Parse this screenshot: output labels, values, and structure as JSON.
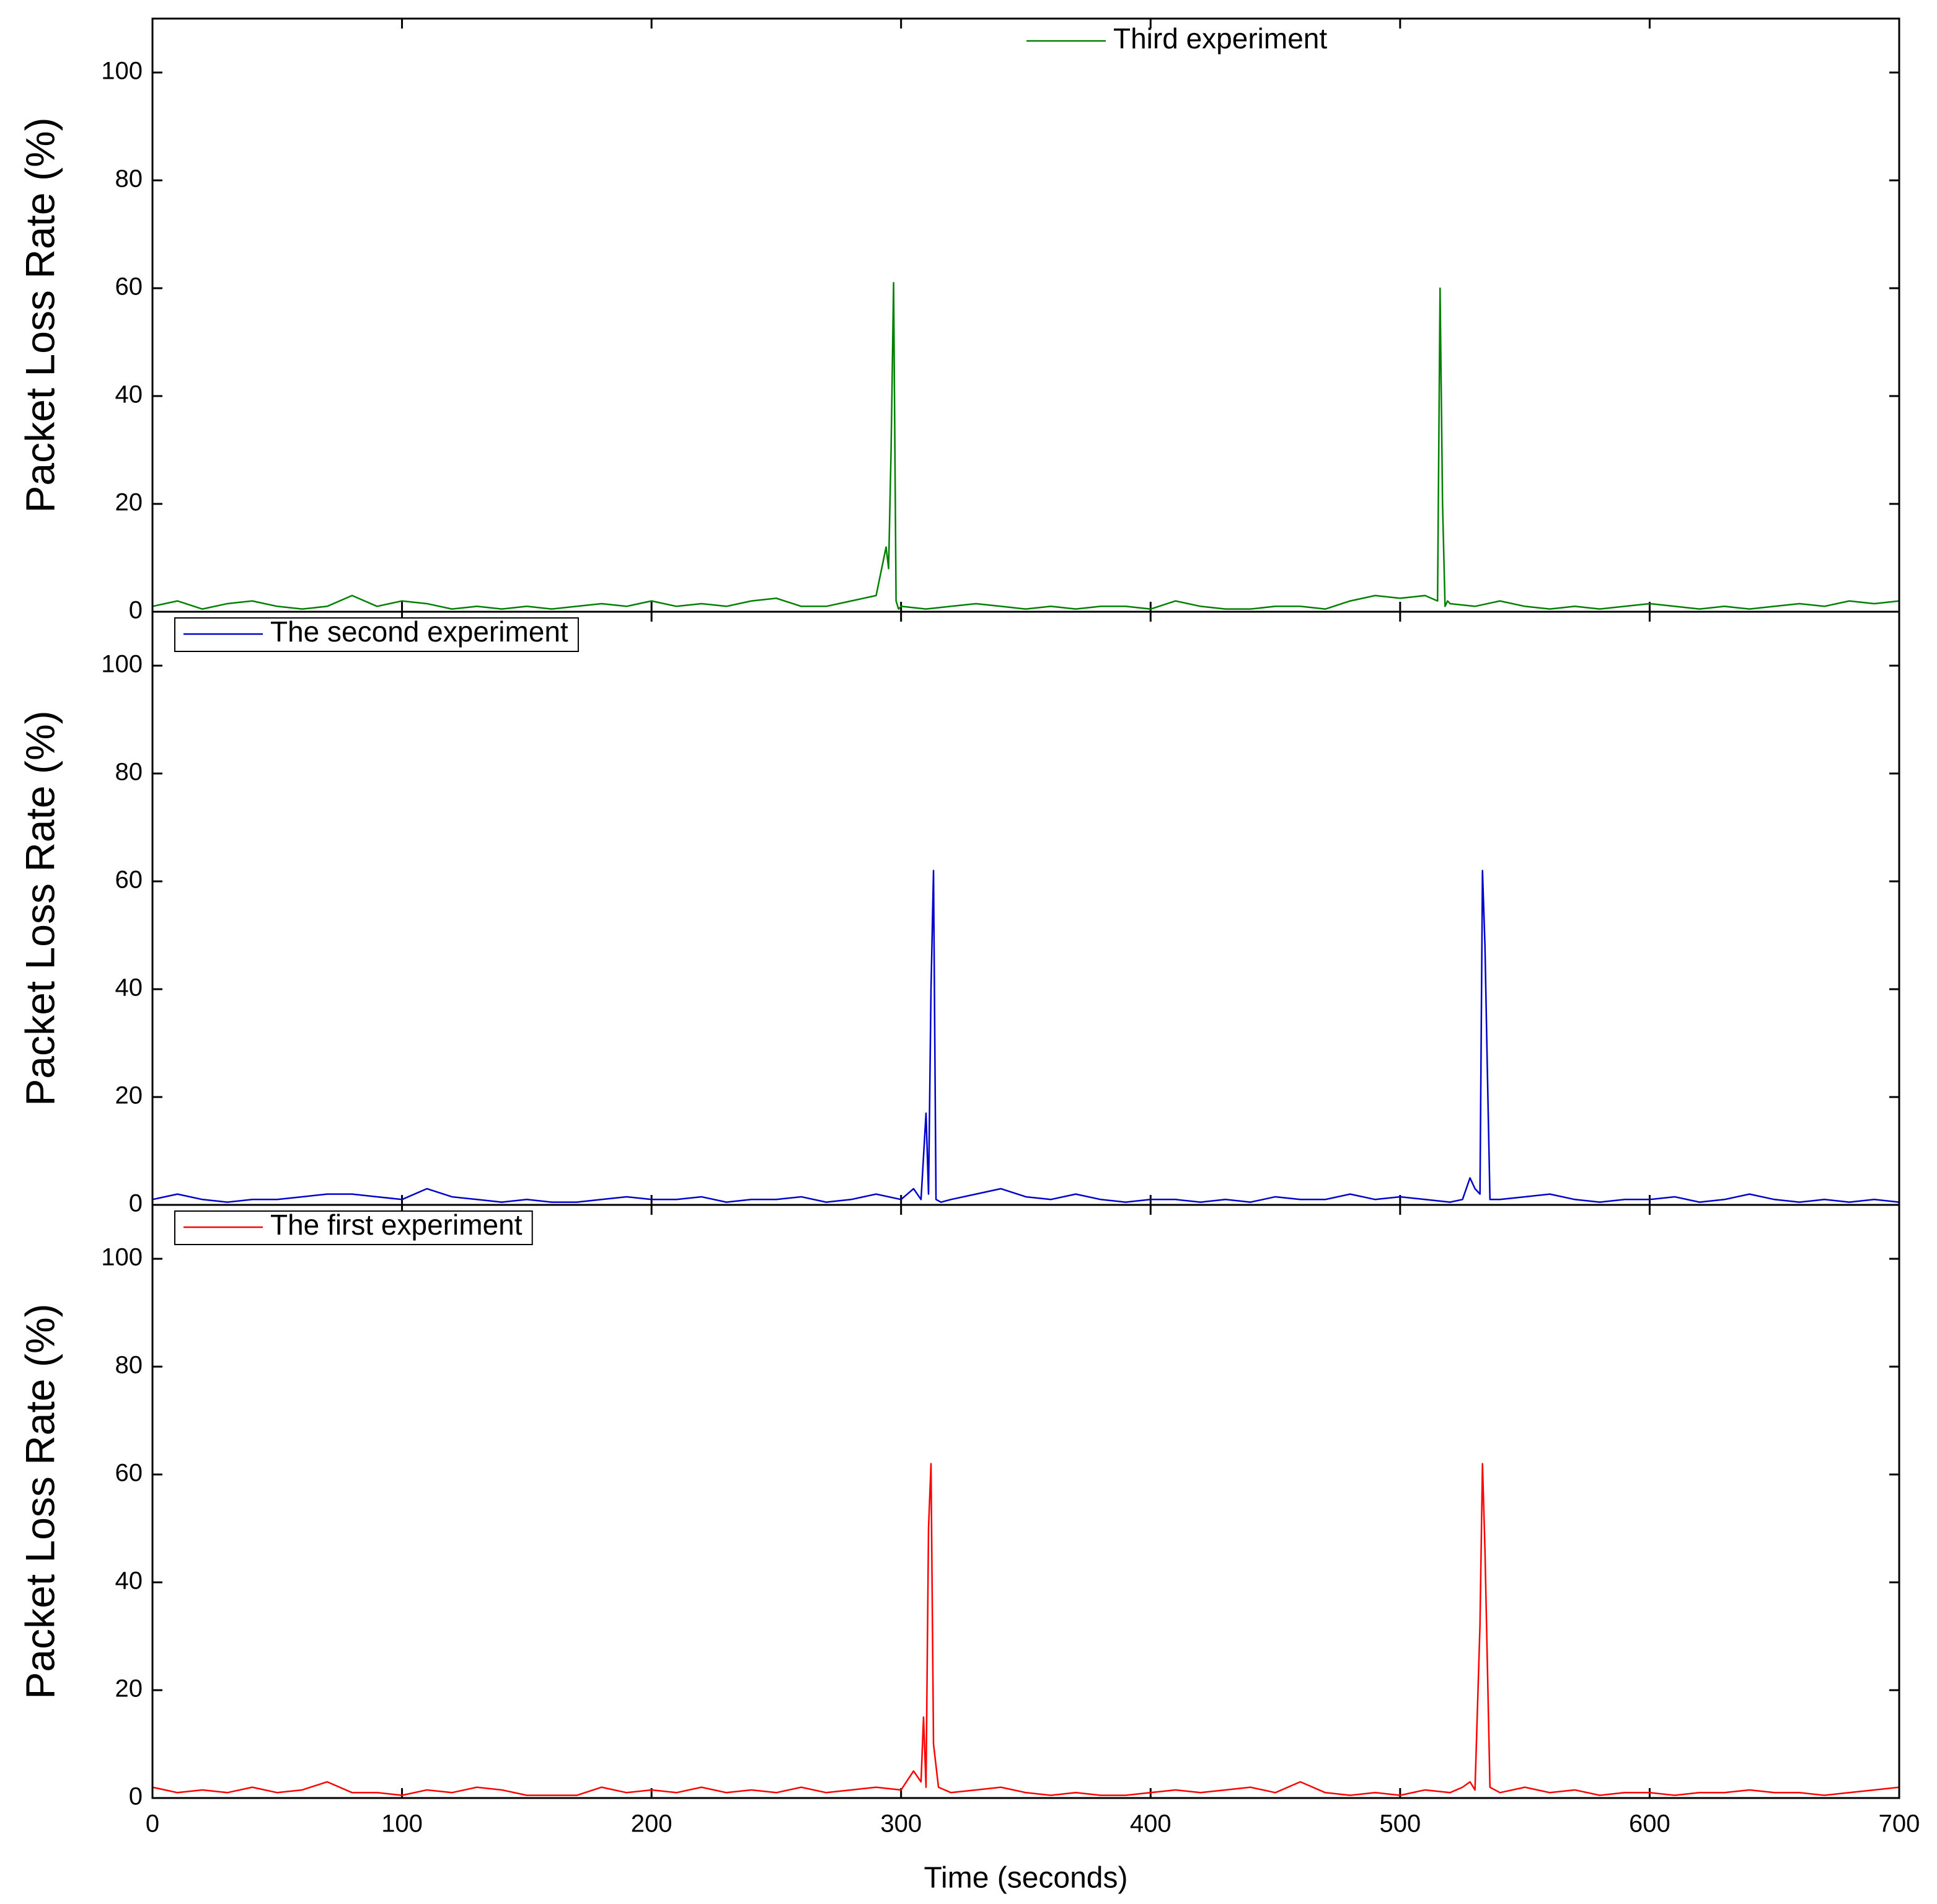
{
  "chart_data": [
    {
      "type": "line",
      "ylabel": "Packet Loss Rate (%)",
      "legend": "top-center",
      "legend_frame": false,
      "xlim": [
        0,
        700
      ],
      "xticks": [
        0,
        100,
        200,
        300,
        400,
        500,
        600,
        700
      ],
      "ylim": [
        0,
        110
      ],
      "yticks": [
        0,
        20,
        40,
        60,
        80,
        100
      ],
      "series": [
        {
          "name": "Third experiment",
          "color": "#008000",
          "x": [
            0,
            10,
            20,
            30,
            40,
            50,
            60,
            70,
            80,
            90,
            100,
            110,
            120,
            130,
            140,
            150,
            160,
            170,
            180,
            190,
            200,
            210,
            220,
            230,
            240,
            250,
            260,
            270,
            280,
            290,
            294,
            295,
            296,
            297,
            298,
            299,
            300,
            310,
            320,
            330,
            340,
            350,
            360,
            370,
            380,
            390,
            400,
            410,
            420,
            430,
            440,
            450,
            460,
            470,
            480,
            490,
            500,
            510,
            515,
            516,
            517,
            518,
            519,
            520,
            530,
            540,
            550,
            560,
            570,
            580,
            590,
            600,
            610,
            620,
            630,
            640,
            650,
            660,
            670,
            680,
            690,
            700
          ],
          "values": [
            1,
            2,
            0.5,
            1.5,
            2,
            1,
            0.5,
            1,
            3,
            1,
            2,
            1.5,
            0.5,
            1,
            0.5,
            1,
            0.5,
            1,
            1.5,
            1,
            2,
            1,
            1.5,
            1,
            2,
            2.5,
            1,
            1,
            2,
            3,
            12,
            8,
            30,
            61,
            2,
            0.5,
            1,
            0.5,
            1,
            1.5,
            1,
            0.5,
            1,
            0.5,
            1,
            1,
            0.5,
            2,
            1,
            0.5,
            0.5,
            1,
            1,
            0.5,
            2,
            3,
            2.5,
            3,
            2,
            60,
            20,
            1,
            2,
            1.5,
            1,
            2,
            1,
            0.5,
            1,
            0.5,
            1,
            1.5,
            1,
            0.5,
            1,
            0.5,
            1,
            1.5,
            1,
            2,
            1.5,
            2
          ]
        }
      ]
    },
    {
      "type": "line",
      "ylabel": "Packet Loss Rate (%)",
      "legend": "top-left",
      "legend_frame": true,
      "xlim": [
        0,
        700
      ],
      "xticks": [
        0,
        100,
        200,
        300,
        400,
        500,
        600,
        700
      ],
      "ylim": [
        0,
        110
      ],
      "yticks": [
        0,
        20,
        40,
        60,
        80,
        100
      ],
      "series": [
        {
          "name": "The second experiment",
          "color": "#0000cc",
          "x": [
            0,
            10,
            20,
            30,
            40,
            50,
            60,
            70,
            80,
            90,
            100,
            110,
            120,
            130,
            140,
            150,
            160,
            170,
            180,
            190,
            200,
            210,
            220,
            230,
            240,
            250,
            260,
            270,
            280,
            290,
            300,
            305,
            308,
            310,
            311,
            312,
            313,
            314,
            316,
            320,
            330,
            340,
            350,
            360,
            370,
            380,
            390,
            400,
            410,
            420,
            430,
            440,
            450,
            460,
            470,
            480,
            490,
            500,
            510,
            520,
            525,
            528,
            530,
            532,
            533,
            534,
            535,
            536,
            540,
            550,
            560,
            570,
            580,
            590,
            600,
            610,
            620,
            630,
            640,
            650,
            660,
            670,
            680,
            690,
            700
          ],
          "values": [
            1,
            2,
            1,
            0.5,
            1,
            1,
            1.5,
            2,
            2,
            1.5,
            1,
            3,
            1.5,
            1,
            0.5,
            1,
            0.5,
            0.5,
            1,
            1.5,
            1,
            1,
            1.5,
            0.5,
            1,
            1,
            1.5,
            0.5,
            1,
            2,
            1,
            3,
            1,
            17,
            2,
            40,
            62,
            1,
            0.5,
            1,
            2,
            3,
            1.5,
            1,
            2,
            1,
            0.5,
            1,
            1,
            0.5,
            1,
            0.5,
            1.5,
            1,
            1,
            2,
            1,
            1.5,
            1,
            0.5,
            1,
            5,
            3,
            2,
            62,
            48,
            24,
            1,
            1,
            1.5,
            2,
            1,
            0.5,
            1,
            1,
            1.5,
            0.5,
            1,
            2,
            1,
            0.5,
            1,
            0.5,
            1,
            0.5
          ]
        }
      ]
    },
    {
      "type": "line",
      "ylabel": "Packet Loss Rate (%)",
      "xlabel": "Time (seconds)",
      "legend": "top-left",
      "legend_frame": true,
      "xlim": [
        0,
        700
      ],
      "xticks": [
        0,
        100,
        200,
        300,
        400,
        500,
        600,
        700
      ],
      "ylim": [
        0,
        110
      ],
      "yticks": [
        0,
        20,
        40,
        60,
        80,
        100
      ],
      "series": [
        {
          "name": "The first experiment",
          "color": "#ff0000",
          "x": [
            0,
            10,
            20,
            30,
            40,
            50,
            60,
            70,
            80,
            90,
            100,
            110,
            120,
            130,
            140,
            150,
            160,
            170,
            180,
            190,
            200,
            210,
            220,
            230,
            240,
            250,
            260,
            270,
            280,
            290,
            300,
            305,
            308,
            309,
            310,
            311,
            312,
            313,
            315,
            320,
            330,
            340,
            350,
            360,
            370,
            380,
            390,
            400,
            410,
            420,
            430,
            440,
            450,
            460,
            470,
            480,
            490,
            500,
            510,
            520,
            525,
            528,
            530,
            532,
            533,
            534,
            536,
            540,
            550,
            560,
            570,
            580,
            590,
            600,
            610,
            620,
            630,
            640,
            650,
            660,
            670,
            680,
            690,
            700
          ],
          "values": [
            2,
            1,
            1.5,
            1,
            2,
            1,
            1.5,
            3,
            1,
            1,
            0.5,
            1.5,
            1,
            2,
            1.5,
            0.5,
            0.5,
            0.5,
            2,
            1,
            1.5,
            1,
            2,
            1,
            1.5,
            1,
            2,
            1,
            1.5,
            2,
            1.5,
            5,
            3,
            15,
            2,
            50,
            62,
            10,
            2,
            1,
            1.5,
            2,
            1,
            0.5,
            1,
            0.5,
            0.5,
            1,
            1.5,
            1,
            1.5,
            2,
            1,
            3,
            1,
            0.5,
            1,
            0.5,
            1.5,
            1,
            2,
            3,
            1.5,
            32,
            62,
            46,
            2,
            1,
            2,
            1,
            1.5,
            0.5,
            1,
            1,
            0.5,
            1,
            1,
            1.5,
            1,
            1,
            0.5,
            1,
            1.5,
            2
          ]
        }
      ]
    }
  ]
}
